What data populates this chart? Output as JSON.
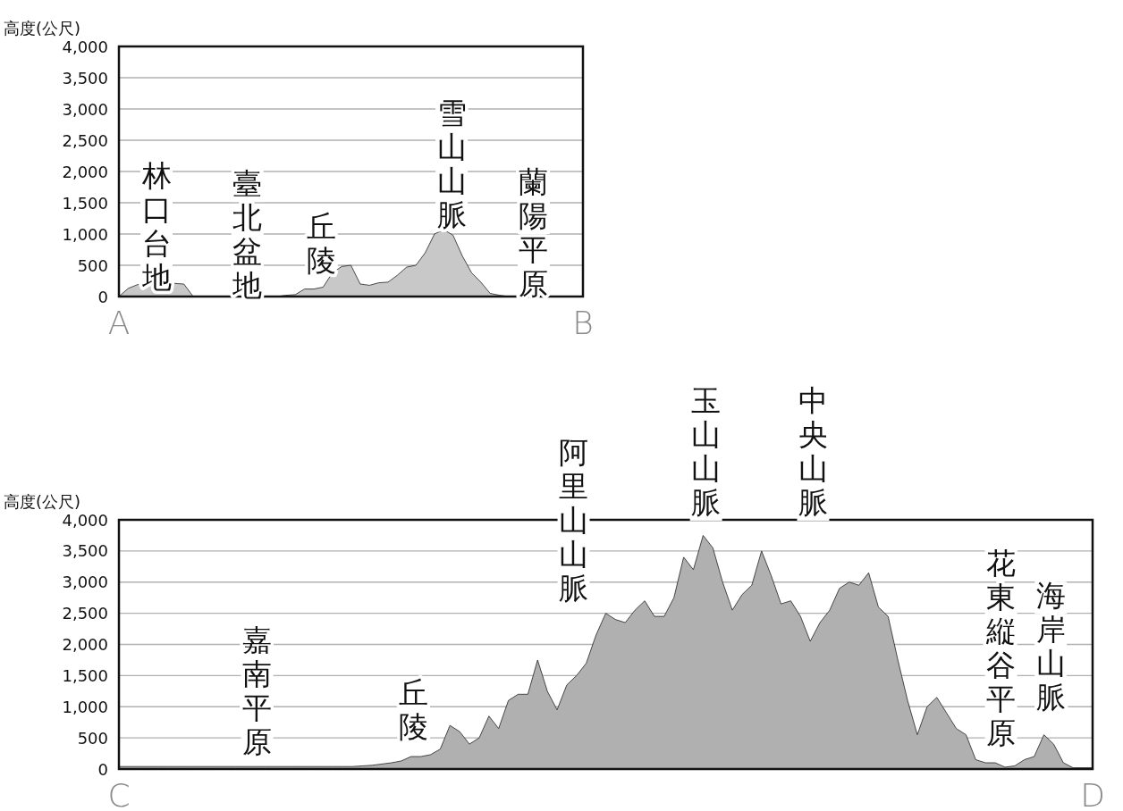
{
  "chart_data": [
    {
      "type": "area",
      "ylabel": "高度(公尺)",
      "color": "#c8c8c8",
      "grid": "y",
      "categories": [
        "A",
        null,
        null,
        null,
        null,
        null,
        null,
        null,
        null,
        null,
        null,
        null,
        null,
        null,
        null,
        null,
        null,
        null,
        null,
        null,
        null,
        null,
        null,
        null,
        null,
        null,
        null,
        null,
        null,
        null,
        null,
        null,
        null,
        null,
        null,
        null,
        null,
        null,
        null,
        null,
        null,
        null,
        null,
        null,
        null,
        null,
        null,
        null,
        null,
        null,
        "B"
      ],
      "ylim": [
        0,
        4000
      ],
      "yticks": [
        {
          "value": 0,
          "label": "0"
        },
        {
          "value": 500,
          "label": "500"
        },
        {
          "value": 1000,
          "label": "1,000"
        },
        {
          "value": 1500,
          "label": "1,500"
        },
        {
          "value": 2000,
          "label": "2,000"
        },
        {
          "value": 2500,
          "label": "2,500"
        },
        {
          "value": 3000,
          "label": "3,000"
        },
        {
          "value": 3500,
          "label": "3,500"
        },
        {
          "value": 4000,
          "label": "4,000"
        }
      ],
      "annotations": [
        "林口台地",
        "臺北盆地",
        "丘陵",
        "雪山山脈",
        "蘭陽平原"
      ],
      "values": [
        0,
        130,
        190,
        200,
        210,
        200,
        210,
        200,
        0,
        0,
        0,
        0,
        0,
        0,
        0,
        0,
        0,
        0,
        20,
        30,
        120,
        120,
        150,
        380,
        480,
        500,
        200,
        180,
        220,
        230,
        340,
        470,
        500,
        700,
        1000,
        1070,
        980,
        650,
        380,
        230,
        50,
        20,
        0,
        0,
        0,
        0,
        0,
        0,
        0,
        0,
        0
      ]
    },
    {
      "type": "area",
      "ylabel": "高度(公尺)",
      "color": "#b0b0b0",
      "grid": "y",
      "categories": [
        "C",
        null,
        null,
        null,
        null,
        null,
        null,
        null,
        null,
        null,
        null,
        null,
        null,
        null,
        null,
        null,
        null,
        null,
        null,
        null,
        null,
        null,
        null,
        null,
        null,
        null,
        null,
        null,
        null,
        null,
        null,
        null,
        null,
        null,
        null,
        null,
        null,
        null,
        null,
        null,
        null,
        null,
        null,
        null,
        null,
        null,
        null,
        null,
        null,
        null,
        null,
        null,
        null,
        null,
        null,
        null,
        null,
        null,
        null,
        null,
        null,
        null,
        null,
        null,
        null,
        null,
        null,
        null,
        null,
        null,
        null,
        null,
        null,
        null,
        null,
        null,
        null,
        null,
        null,
        null,
        null,
        null,
        null,
        null,
        null,
        null,
        null,
        null,
        null,
        null,
        null,
        null,
        null,
        null,
        null,
        null,
        null,
        null,
        null,
        null,
        "D"
      ],
      "ylim": [
        0,
        4000
      ],
      "yticks": [
        {
          "value": 0,
          "label": "0"
        },
        {
          "value": 500,
          "label": "500"
        },
        {
          "value": 1000,
          "label": "1,000"
        },
        {
          "value": 1500,
          "label": "1,500"
        },
        {
          "value": 2000,
          "label": "2,000"
        },
        {
          "value": 2500,
          "label": "2,500"
        },
        {
          "value": 3000,
          "label": "3,000"
        },
        {
          "value": 3500,
          "label": "3,500"
        },
        {
          "value": 4000,
          "label": "4,000"
        }
      ],
      "annotations": [
        "嘉南平原",
        "丘陵",
        "阿里山山脈",
        "玉山山脈",
        "中央山脈",
        "花東縦谷平原",
        "海岸山脈"
      ],
      "values": [
        40,
        40,
        40,
        40,
        40,
        40,
        40,
        40,
        40,
        40,
        40,
        40,
        40,
        40,
        40,
        40,
        40,
        40,
        40,
        40,
        40,
        40,
        40,
        40,
        40,
        50,
        60,
        80,
        100,
        130,
        200,
        200,
        230,
        320,
        700,
        600,
        400,
        500,
        850,
        650,
        1100,
        1200,
        1200,
        1750,
        1250,
        950,
        1350,
        1500,
        1700,
        2150,
        2500,
        2400,
        2350,
        2550,
        2700,
        2450,
        2450,
        2750,
        3400,
        3200,
        3750,
        3550,
        3000,
        2550,
        2800,
        2950,
        3500,
        3100,
        2650,
        2700,
        2450,
        2050,
        2350,
        2550,
        2900,
        3000,
        2950,
        3150,
        2600,
        2450,
        1750,
        1100,
        550,
        1000,
        1150,
        900,
        650,
        550,
        150,
        100,
        100,
        30,
        50,
        150,
        200,
        550,
        400,
        100,
        20,
        20,
        20
      ]
    }
  ]
}
